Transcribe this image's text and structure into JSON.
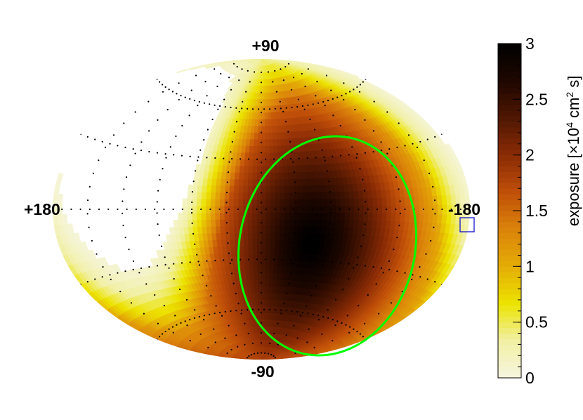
{
  "chart_data": {
    "type": "heatmap",
    "projection": "aitoff",
    "coordinate_system": "galactic",
    "axis_labels": {
      "top": "+90",
      "bottom": "-90",
      "left": "+180",
      "right": "-180"
    },
    "colorbar": {
      "title_prefix": "exposure [",
      "title_mult": "×",
      "title_base": "10",
      "title_exp": "4",
      "title_unit": " cm",
      "title_unit_exp": "2",
      "title_suffix": " s]",
      "range": [
        0,
        3
      ],
      "ticks": [
        {
          "value": 0,
          "label": "0"
        },
        {
          "value": 0.5,
          "label": "0.5"
        },
        {
          "value": 1,
          "label": "1"
        },
        {
          "value": 1.5,
          "label": "1.5"
        },
        {
          "value": 2,
          "label": "2"
        },
        {
          "value": 2.5,
          "label": "2.5"
        },
        {
          "value": 3,
          "label": "3"
        }
      ],
      "palette": [
        "#f6f5df",
        "#f1f0a4",
        "#ece300",
        "#e4ad06",
        "#db830a",
        "#c04f09",
        "#8a2b05",
        "#4f1702",
        "#1e0700",
        "#000000"
      ]
    },
    "zero_exposure_region": {
      "center_l": 120,
      "center_b": 25
    },
    "max_exposure_point": {
      "l": -45,
      "b": -20,
      "value": 3
    },
    "contour_color": "#00ff00",
    "marker_color": "#0000cc"
  }
}
